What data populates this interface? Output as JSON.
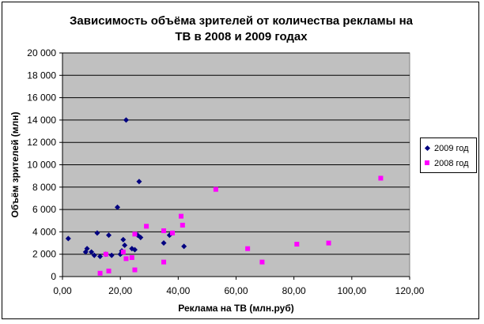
{
  "chart_data": {
    "type": "scatter",
    "title_lines": [
      "Зависимость объёма зрителей от количества рекламы на",
      "ТВ в 2008 и 2009 годах"
    ],
    "xlabel": "Реклама на ТВ (млн.руб)",
    "ylabel": "Объём зрителей (млн)",
    "xlim": [
      0,
      120
    ],
    "ylim": [
      0,
      20000
    ],
    "x_ticks": [
      "0,00",
      "20,00",
      "40,00",
      "60,00",
      "80,00",
      "100,00",
      "120,00"
    ],
    "y_ticks": [
      "0",
      "2 000",
      "4 000",
      "6 000",
      "8 000",
      "10 000",
      "12 000",
      "14 000",
      "16 000",
      "18 000",
      "20 000"
    ],
    "grid": "horizontal",
    "plot_background": "#c0c0c0",
    "legend_position": "right",
    "series": [
      {
        "name": "2009 год",
        "marker": "diamond",
        "color": "#000080",
        "points": [
          [
            2,
            3400
          ],
          [
            8,
            2200
          ],
          [
            8.5,
            2500
          ],
          [
            10,
            2200
          ],
          [
            11,
            1900
          ],
          [
            12,
            3900
          ],
          [
            13,
            1800
          ],
          [
            15,
            2000
          ],
          [
            16,
            3700
          ],
          [
            17,
            1900
          ],
          [
            19,
            6200
          ],
          [
            20,
            2000
          ],
          [
            20.5,
            2300
          ],
          [
            21,
            3300
          ],
          [
            21.5,
            2800
          ],
          [
            22,
            14000
          ],
          [
            24,
            2500
          ],
          [
            25,
            2400
          ],
          [
            26,
            3700
          ],
          [
            26.5,
            8500
          ],
          [
            27,
            3500
          ],
          [
            35,
            3000
          ],
          [
            37,
            3700
          ],
          [
            42,
            2700
          ]
        ]
      },
      {
        "name": "2008 год",
        "marker": "square",
        "color": "#ff00ff",
        "points": [
          [
            13,
            300
          ],
          [
            15,
            2000
          ],
          [
            16,
            500
          ],
          [
            21,
            2200
          ],
          [
            22,
            1600
          ],
          [
            24,
            1700
          ],
          [
            25,
            600
          ],
          [
            25,
            3800
          ],
          [
            29,
            4500
          ],
          [
            35,
            4100
          ],
          [
            35,
            1300
          ],
          [
            38,
            3900
          ],
          [
            41,
            5400
          ],
          [
            41.5,
            4600
          ],
          [
            53,
            7800
          ],
          [
            64,
            2500
          ],
          [
            69,
            1300
          ],
          [
            81,
            2900
          ],
          [
            92,
            3000
          ],
          [
            110,
            8800
          ]
        ]
      }
    ]
  }
}
